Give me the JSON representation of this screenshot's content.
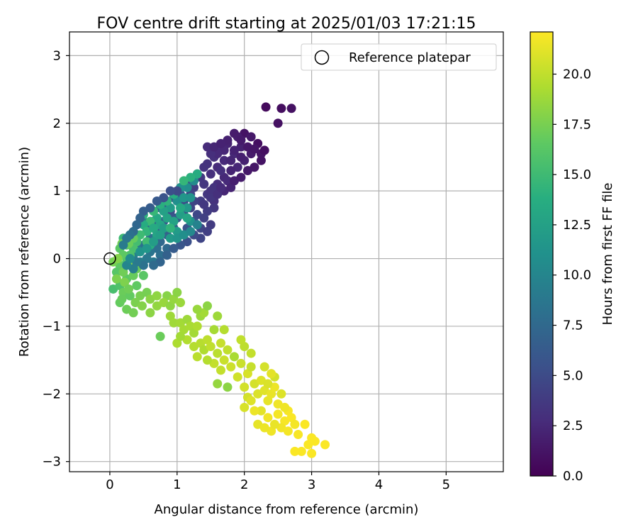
{
  "chart_data": {
    "type": "scatter",
    "title": "FOV centre drift starting at 2025/01/03 17:21:15",
    "xlabel": "Angular distance from reference (arcmin)",
    "ylabel": "Rotation from reference (arcmin)",
    "colorbar_label": "Hours from first FF file",
    "xlim": [
      -0.6,
      5.85
    ],
    "ylim": [
      -3.15,
      3.35
    ],
    "clim": [
      0,
      22.1
    ],
    "xticks": [
      0,
      1,
      2,
      3,
      4,
      5
    ],
    "xtick_labels": [
      "0",
      "1",
      "2",
      "3",
      "4",
      "5"
    ],
    "yticks": [
      -3,
      -2,
      -1,
      0,
      1,
      2,
      3
    ],
    "ytick_labels": [
      "−3",
      "−2",
      "−1",
      "0",
      "1",
      "2",
      "3"
    ],
    "cticks": [
      0,
      2.5,
      5,
      7.5,
      10,
      12.5,
      15,
      17.5,
      20
    ],
    "ctick_labels": [
      "0.0",
      "2.5",
      "5.0",
      "7.5",
      "10.0",
      "12.5",
      "15.0",
      "17.5",
      "20.0"
    ],
    "grid": true,
    "colormap": "viridis",
    "legend": {
      "location": "top-right",
      "entries": [
        "Reference platepar"
      ]
    },
    "reference_point": {
      "x": 0,
      "y": 0
    },
    "points": [
      [
        2.32,
        2.24,
        0.6
      ],
      [
        2.55,
        2.22,
        0.8
      ],
      [
        2.7,
        2.22,
        1.0
      ],
      [
        2.5,
        2.0,
        1.0
      ],
      [
        2.0,
        1.85,
        1.1
      ],
      [
        2.1,
        1.8,
        1.5
      ],
      [
        1.9,
        1.8,
        1.8
      ],
      [
        1.95,
        1.65,
        2.0
      ],
      [
        2.2,
        1.7,
        0.9
      ],
      [
        2.25,
        1.55,
        1.2
      ],
      [
        2.1,
        1.55,
        1.6
      ],
      [
        1.75,
        1.7,
        2.2
      ],
      [
        1.85,
        1.55,
        2.5
      ],
      [
        1.65,
        1.6,
        2.8
      ],
      [
        2.0,
        1.45,
        2.0
      ],
      [
        1.9,
        1.35,
        2.4
      ],
      [
        1.7,
        1.45,
        2.6
      ],
      [
        1.55,
        1.5,
        3.0
      ],
      [
        1.8,
        1.3,
        2.2
      ],
      [
        1.6,
        1.35,
        2.7
      ],
      [
        1.45,
        1.4,
        3.2
      ],
      [
        1.7,
        1.2,
        2.5
      ],
      [
        1.5,
        1.25,
        3.0
      ],
      [
        1.35,
        1.2,
        3.6
      ],
      [
        1.6,
        1.1,
        2.8
      ],
      [
        1.4,
        1.1,
        3.4
      ],
      [
        1.7,
        1.0,
        2.3
      ],
      [
        1.25,
        1.05,
        4.0
      ],
      [
        1.45,
        0.95,
        3.5
      ],
      [
        1.35,
        0.85,
        3.9
      ],
      [
        1.15,
        1.1,
        5.0
      ],
      [
        1.3,
        1.25,
        4.2
      ],
      [
        1.2,
        0.95,
        4.6
      ],
      [
        1.55,
        0.85,
        3.1
      ],
      [
        1.4,
        1.35,
        3.3
      ],
      [
        1.85,
        1.6,
        2.1
      ],
      [
        2.05,
        1.65,
        1.4
      ],
      [
        2.15,
        1.62,
        1.3
      ],
      [
        1.95,
        1.5,
        1.9
      ],
      [
        1.8,
        1.45,
        2.3
      ],
      [
        1.65,
        1.3,
        2.9
      ],
      [
        1.75,
        1.15,
        2.6
      ],
      [
        1.55,
        1.05,
        3.2
      ],
      [
        1.5,
        1.0,
        3.3
      ],
      [
        1.05,
        0.95,
        5.5
      ],
      [
        0.95,
        0.9,
        5.9
      ],
      [
        0.85,
        0.8,
        6.3
      ],
      [
        0.75,
        0.75,
        6.8
      ],
      [
        0.65,
        0.55,
        7.2
      ],
      [
        0.55,
        0.45,
        7.8
      ],
      [
        0.6,
        0.3,
        8.0
      ],
      [
        0.7,
        0.4,
        6.5
      ],
      [
        0.8,
        0.55,
        6.0
      ],
      [
        0.9,
        0.7,
        5.2
      ],
      [
        1.0,
        0.6,
        5.8
      ],
      [
        1.1,
        0.7,
        5.0
      ],
      [
        1.2,
        0.75,
        4.5
      ],
      [
        1.3,
        0.65,
        4.8
      ],
      [
        1.25,
        0.55,
        5.3
      ],
      [
        1.35,
        0.45,
        4.6
      ],
      [
        0.95,
        0.45,
        6.4
      ],
      [
        0.85,
        0.35,
        6.9
      ],
      [
        0.75,
        0.25,
        7.4
      ],
      [
        0.7,
        0.15,
        7.9
      ],
      [
        0.6,
        0.1,
        8.5
      ],
      [
        0.55,
        0.0,
        8.8
      ],
      [
        0.45,
        -0.05,
        9.2
      ],
      [
        0.5,
        0.2,
        8.2
      ],
      [
        0.4,
        0.15,
        9.0
      ],
      [
        0.35,
        0.05,
        9.5
      ],
      [
        0.65,
        -0.05,
        8.7
      ],
      [
        0.75,
        0.05,
        8.0
      ],
      [
        0.85,
        0.15,
        7.5
      ],
      [
        1.05,
        0.35,
        6.2
      ],
      [
        1.15,
        0.45,
        5.6
      ],
      [
        0.3,
        0.25,
        9.8
      ],
      [
        0.4,
        0.35,
        9.1
      ],
      [
        0.5,
        0.55,
        8.4
      ],
      [
        1.55,
        0.75,
        3.5
      ],
      [
        1.45,
        0.7,
        3.9
      ],
      [
        1.4,
        0.6,
        4.2
      ],
      [
        1.25,
        0.85,
        4.4
      ],
      [
        1.1,
        0.85,
        5.1
      ],
      [
        0.95,
        0.6,
        5.7
      ],
      [
        1.0,
        0.85,
        11.0
      ],
      [
        1.1,
        0.9,
        11.5
      ],
      [
        0.9,
        0.75,
        12.0
      ],
      [
        1.15,
        0.75,
        11.8
      ],
      [
        1.05,
        0.65,
        12.3
      ],
      [
        0.85,
        0.6,
        12.8
      ],
      [
        0.75,
        0.5,
        13.0
      ],
      [
        0.8,
        0.7,
        12.5
      ],
      [
        0.7,
        0.6,
        13.2
      ],
      [
        0.95,
        0.55,
        12.6
      ],
      [
        1.2,
        0.9,
        11.3
      ],
      [
        1.15,
        1.05,
        10.8
      ],
      [
        1.05,
        1.05,
        11.1
      ],
      [
        1.25,
        1.15,
        10.5
      ],
      [
        1.3,
        1.25,
        13.5
      ],
      [
        1.2,
        1.2,
        14.0
      ],
      [
        1.1,
        1.15,
        14.5
      ],
      [
        0.95,
        0.95,
        13.8
      ],
      [
        0.85,
        0.85,
        14.2
      ],
      [
        0.75,
        0.8,
        13.9
      ],
      [
        0.65,
        0.7,
        14.6
      ],
      [
        0.6,
        0.55,
        14.8
      ],
      [
        0.5,
        0.5,
        13.6
      ],
      [
        0.55,
        0.4,
        14.4
      ],
      [
        0.45,
        0.35,
        15.0
      ],
      [
        0.4,
        0.25,
        15.3
      ],
      [
        0.35,
        0.15,
        15.6
      ],
      [
        0.3,
        0.05,
        15.8
      ],
      [
        0.25,
        0.2,
        16.0
      ],
      [
        0.2,
        0.3,
        14.9
      ],
      [
        0.15,
        0.15,
        16.3
      ],
      [
        0.2,
        0.05,
        16.5
      ],
      [
        0.25,
        -0.05,
        16.0
      ],
      [
        0.3,
        0.35,
        15.4
      ],
      [
        0.35,
        0.3,
        16.8
      ],
      [
        0.28,
        0.22,
        17.0
      ],
      [
        0.18,
        0.22,
        17.2
      ],
      [
        0.5,
        0.65,
        14.1
      ],
      [
        0.65,
        0.45,
        13.4
      ],
      [
        0.7,
        0.35,
        12.9
      ],
      [
        0.8,
        0.45,
        12.2
      ],
      [
        0.6,
        0.2,
        13.7
      ],
      [
        1.0,
        0.4,
        12.0
      ],
      [
        1.2,
        0.55,
        11.2
      ],
      [
        1.05,
        0.75,
        13.2
      ],
      [
        1.15,
        0.6,
        13.0
      ],
      [
        0.9,
        0.45,
        14.3
      ],
      [
        0.55,
        0.25,
        15.1
      ],
      [
        0.15,
        -0.1,
        16.5
      ],
      [
        0.1,
        -0.2,
        16.2
      ],
      [
        0.05,
        -0.45,
        15.5
      ],
      [
        0.15,
        -0.4,
        15.8
      ],
      [
        0.25,
        -0.3,
        16.4
      ],
      [
        0.35,
        -0.25,
        16.9
      ],
      [
        0.2,
        -0.5,
        17.0
      ],
      [
        0.3,
        -0.55,
        16.7
      ],
      [
        0.4,
        -0.4,
        16.6
      ],
      [
        0.15,
        -0.65,
        16.8
      ],
      [
        0.25,
        -0.75,
        17.1
      ],
      [
        0.35,
        -0.8,
        17.3
      ],
      [
        0.45,
        -0.55,
        17.5
      ],
      [
        0.55,
        -0.5,
        17.4
      ],
      [
        0.1,
        -0.3,
        17.6
      ],
      [
        0.2,
        -0.2,
        17.2
      ],
      [
        0.3,
        -0.1,
        17.8
      ],
      [
        0.4,
        -0.15,
        17.0
      ],
      [
        0.5,
        -0.25,
        16.3
      ],
      [
        0.05,
        -0.05,
        17.4
      ],
      [
        0.12,
        0.0,
        17.9
      ],
      [
        0.22,
        -0.35,
        17.7
      ],
      [
        0.18,
        -0.6,
        16.9
      ],
      [
        0.28,
        -0.45,
        17.2
      ],
      [
        0.38,
        -0.65,
        17.6
      ],
      [
        0.48,
        -0.7,
        17.9
      ],
      [
        0.6,
        -0.6,
        18.1
      ],
      [
        0.7,
        -0.55,
        18.3
      ],
      [
        0.85,
        -0.55,
        18.0
      ],
      [
        0.6,
        -0.8,
        18.2
      ],
      [
        0.7,
        -0.7,
        18.4
      ],
      [
        0.8,
        -0.65,
        18.6
      ],
      [
        0.9,
        -0.7,
        18.3
      ],
      [
        0.95,
        -0.6,
        18.5
      ],
      [
        1.05,
        -0.65,
        18.7
      ],
      [
        1.0,
        -0.5,
        18.1
      ],
      [
        0.75,
        -1.15,
        17.0
      ],
      [
        0.9,
        -0.85,
        18.8
      ],
      [
        0.95,
        -0.95,
        18.9
      ],
      [
        1.05,
        -0.95,
        19.0
      ],
      [
        1.1,
        -1.05,
        19.1
      ],
      [
        1.15,
        -0.9,
        18.8
      ],
      [
        1.2,
        -1.0,
        19.2
      ],
      [
        1.25,
        -1.1,
        19.0
      ],
      [
        1.3,
        -1.0,
        19.4
      ],
      [
        1.35,
        -0.85,
        18.7
      ],
      [
        1.0,
        -1.25,
        19.3
      ],
      [
        1.15,
        -1.2,
        19.5
      ],
      [
        1.05,
        -1.15,
        19.0
      ],
      [
        1.25,
        -1.3,
        19.6
      ],
      [
        1.35,
        -1.25,
        19.7
      ],
      [
        1.3,
        -1.45,
        19.8
      ],
      [
        1.4,
        -1.35,
        19.4
      ],
      [
        1.45,
        -1.2,
        19.9
      ],
      [
        1.55,
        -1.05,
        19.1
      ],
      [
        1.5,
        -1.3,
        20.0
      ],
      [
        1.6,
        -1.4,
        19.8
      ],
      [
        1.65,
        -1.25,
        20.2
      ],
      [
        1.55,
        -1.55,
        20.1
      ],
      [
        1.45,
        -1.5,
        19.6
      ],
      [
        1.7,
        -1.5,
        20.3
      ],
      [
        1.75,
        -1.35,
        20.0
      ],
      [
        1.8,
        -1.6,
        20.4
      ],
      [
        1.65,
        -1.65,
        20.1
      ],
      [
        1.6,
        -1.85,
        18.5
      ],
      [
        1.75,
        -1.9,
        18.2
      ],
      [
        1.85,
        -1.45,
        19.2
      ],
      [
        1.4,
        -0.8,
        19.0
      ],
      [
        1.6,
        -0.85,
        18.8
      ],
      [
        1.3,
        -0.75,
        18.6
      ],
      [
        1.45,
        -0.7,
        18.2
      ],
      [
        1.7,
        -1.05,
        19.6
      ],
      [
        1.9,
        -1.75,
        20.5
      ],
      [
        1.95,
        -1.55,
        20.3
      ],
      [
        2.0,
        -1.9,
        20.6
      ],
      [
        2.05,
        -1.7,
        20.8
      ],
      [
        2.1,
        -1.6,
        20.2
      ],
      [
        2.15,
        -1.85,
        20.7
      ],
      [
        2.2,
        -2.0,
        20.9
      ],
      [
        2.25,
        -1.8,
        21.0
      ],
      [
        2.05,
        -2.05,
        20.6
      ],
      [
        2.0,
        -1.3,
        19.9
      ],
      [
        2.1,
        -1.4,
        20.1
      ],
      [
        1.95,
        -1.2,
        20.0
      ],
      [
        2.3,
        -1.95,
        21.1
      ],
      [
        2.35,
        -2.1,
        21.3
      ],
      [
        2.4,
        -2.0,
        21.4
      ],
      [
        2.45,
        -1.9,
        21.5
      ],
      [
        2.5,
        -2.15,
        21.6
      ],
      [
        2.25,
        -2.25,
        21.2
      ],
      [
        2.35,
        -2.35,
        21.7
      ],
      [
        2.15,
        -2.25,
        21.5
      ],
      [
        2.2,
        -2.45,
        21.3
      ],
      [
        2.4,
        -2.55,
        21.6
      ],
      [
        2.5,
        -2.3,
        21.8
      ],
      [
        2.6,
        -2.4,
        21.9
      ],
      [
        2.55,
        -2.5,
        21.7
      ],
      [
        2.3,
        -2.5,
        21.5
      ],
      [
        2.45,
        -2.45,
        21.4
      ],
      [
        2.1,
        -2.1,
        21.0
      ],
      [
        2.0,
        -2.2,
        20.8
      ],
      [
        2.65,
        -2.25,
        21.9
      ],
      [
        2.7,
        -2.35,
        22.0
      ],
      [
        2.75,
        -2.45,
        21.8
      ],
      [
        2.6,
        -2.2,
        21.6
      ],
      [
        2.55,
        -2.0,
        21.0
      ],
      [
        2.45,
        -1.75,
        20.6
      ],
      [
        2.35,
        -1.85,
        20.9
      ],
      [
        2.9,
        -2.45,
        22.0
      ],
      [
        3.0,
        -2.65,
        22.0
      ],
      [
        2.95,
        -2.75,
        22.0
      ],
      [
        3.05,
        -2.7,
        22.0
      ],
      [
        3.2,
        -2.75,
        22.0
      ],
      [
        2.85,
        -2.85,
        22.0
      ],
      [
        2.75,
        -2.85,
        22.0
      ],
      [
        3.0,
        -2.88,
        22.0
      ],
      [
        2.8,
        -2.6,
        21.9
      ],
      [
        2.65,
        -2.55,
        21.8
      ],
      [
        2.4,
        -1.7,
        21.2
      ],
      [
        2.3,
        -1.6,
        20.7
      ],
      [
        1.5,
        0.5,
        3.8
      ],
      [
        1.45,
        0.4,
        4.1
      ],
      [
        1.35,
        0.3,
        4.5
      ],
      [
        1.25,
        0.35,
        4.9
      ],
      [
        1.15,
        0.25,
        5.4
      ],
      [
        1.05,
        0.2,
        5.9
      ],
      [
        0.95,
        0.15,
        6.3
      ],
      [
        0.85,
        0.05,
        6.8
      ],
      [
        0.75,
        -0.05,
        7.1
      ],
      [
        0.65,
        -0.1,
        7.6
      ],
      [
        0.5,
        -0.1,
        8.3
      ],
      [
        0.4,
        -0.05,
        8.9
      ],
      [
        0.35,
        -0.15,
        9.4
      ],
      [
        0.25,
        -0.1,
        10.0
      ],
      [
        0.3,
        0.0,
        10.6
      ],
      [
        0.45,
        0.1,
        11.2
      ],
      [
        0.55,
        0.15,
        11.6
      ],
      [
        0.65,
        0.25,
        12.1
      ],
      [
        0.75,
        0.35,
        12.4
      ],
      [
        0.9,
        0.3,
        11.9
      ],
      [
        1.0,
        0.3,
        11.4
      ],
      [
        1.1,
        0.35,
        10.9
      ],
      [
        1.2,
        0.4,
        10.3
      ],
      [
        1.3,
        0.5,
        9.7
      ],
      [
        1.4,
        0.8,
        3.6
      ],
      [
        1.5,
        0.9,
        3.4
      ],
      [
        1.6,
        0.95,
        3.0
      ],
      [
        1.65,
        1.05,
        2.7
      ],
      [
        1.8,
        1.05,
        2.2
      ],
      [
        1.85,
        1.15,
        1.9
      ],
      [
        1.95,
        1.2,
        1.7
      ],
      [
        2.05,
        1.3,
        1.5
      ],
      [
        2.15,
        1.35,
        1.3
      ],
      [
        2.25,
        1.45,
        1.1
      ],
      [
        2.3,
        1.6,
        0.9
      ],
      [
        1.95,
        1.75,
        1.6
      ],
      [
        1.75,
        1.75,
        2.0
      ],
      [
        1.7,
        1.6,
        2.4
      ],
      [
        1.6,
        1.55,
        2.6
      ],
      [
        1.5,
        1.55,
        2.9
      ],
      [
        1.45,
        1.65,
        2.7
      ],
      [
        1.55,
        1.65,
        2.3
      ],
      [
        1.65,
        1.7,
        2.1
      ],
      [
        1.85,
        1.85,
        1.7
      ],
      [
        1.0,
        1.0,
        4.9
      ],
      [
        0.9,
        1.0,
        5.3
      ],
      [
        0.8,
        0.9,
        5.7
      ],
      [
        0.7,
        0.85,
        6.1
      ],
      [
        0.6,
        0.75,
        6.4
      ],
      [
        0.5,
        0.7,
        6.6
      ],
      [
        0.45,
        0.6,
        6.9
      ],
      [
        0.4,
        0.5,
        7.3
      ],
      [
        0.35,
        0.4,
        7.7
      ],
      [
        0.3,
        0.35,
        8.1
      ],
      [
        0.25,
        0.3,
        8.6
      ],
      [
        0.2,
        0.2,
        9.0
      ]
    ]
  }
}
